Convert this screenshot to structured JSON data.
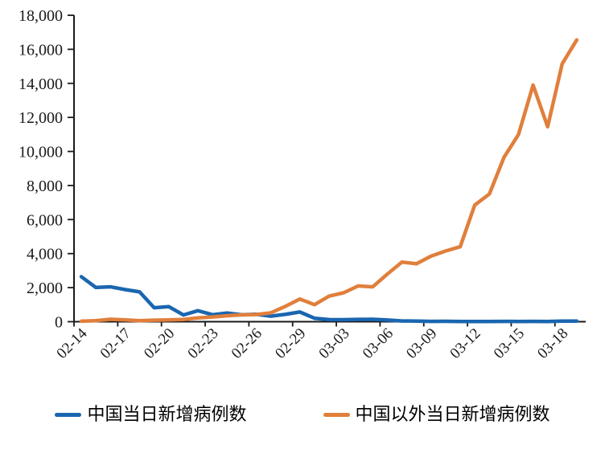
{
  "chart_data": {
    "type": "line",
    "title": "",
    "xlabel": "",
    "ylabel": "",
    "grid": false,
    "legend_position": "bottom",
    "axis_color": "#1a1a1a",
    "ylim": [
      0,
      18000
    ],
    "y_ticks": [
      0,
      2000,
      4000,
      6000,
      8000,
      10000,
      12000,
      14000,
      16000,
      18000
    ],
    "x": [
      "02-14",
      "02-15",
      "02-16",
      "02-17",
      "02-18",
      "02-19",
      "02-20",
      "02-21",
      "02-22",
      "02-23",
      "02-24",
      "02-25",
      "02-26",
      "02-27",
      "02-28",
      "02-29",
      "03-01",
      "03-02",
      "03-03",
      "03-04",
      "03-05",
      "03-06",
      "03-07",
      "03-08",
      "03-09",
      "03-10",
      "03-11",
      "03-12",
      "03-13",
      "03-14",
      "03-15",
      "03-16",
      "03-17",
      "03-18",
      "03-19"
    ],
    "x_tick_labels": [
      "02-14",
      "02-17",
      "02-20",
      "02-23",
      "02-26",
      "02-29",
      "03-03",
      "03-06",
      "03-09",
      "03-12",
      "03-15",
      "03-18"
    ],
    "series": [
      {
        "name": "中国当日新增病例数",
        "color": "#1A66B0",
        "values": [
          2641,
          2009,
          2048,
          1886,
          1749,
          820,
          889,
          397,
          648,
          409,
          508,
          406,
          433,
          327,
          427,
          573,
          202,
          125,
          119,
          139,
          143,
          99,
          44,
          40,
          19,
          24,
          15,
          8,
          11,
          20,
          16,
          21,
          13,
          34,
          39
        ]
      },
      {
        "name": "中国以外当日新增病例数",
        "color": "#E07F3C",
        "values": [
          30,
          60,
          140,
          110,
          60,
          90,
          110,
          130,
          220,
          280,
          350,
          400,
          420,
          520,
          900,
          1330,
          1000,
          1500,
          1700,
          2100,
          2050,
          2800,
          3500,
          3400,
          3850,
          4150,
          4400,
          6850,
          7500,
          9650,
          11000,
          13900,
          11450,
          15150,
          16550
        ]
      }
    ]
  }
}
